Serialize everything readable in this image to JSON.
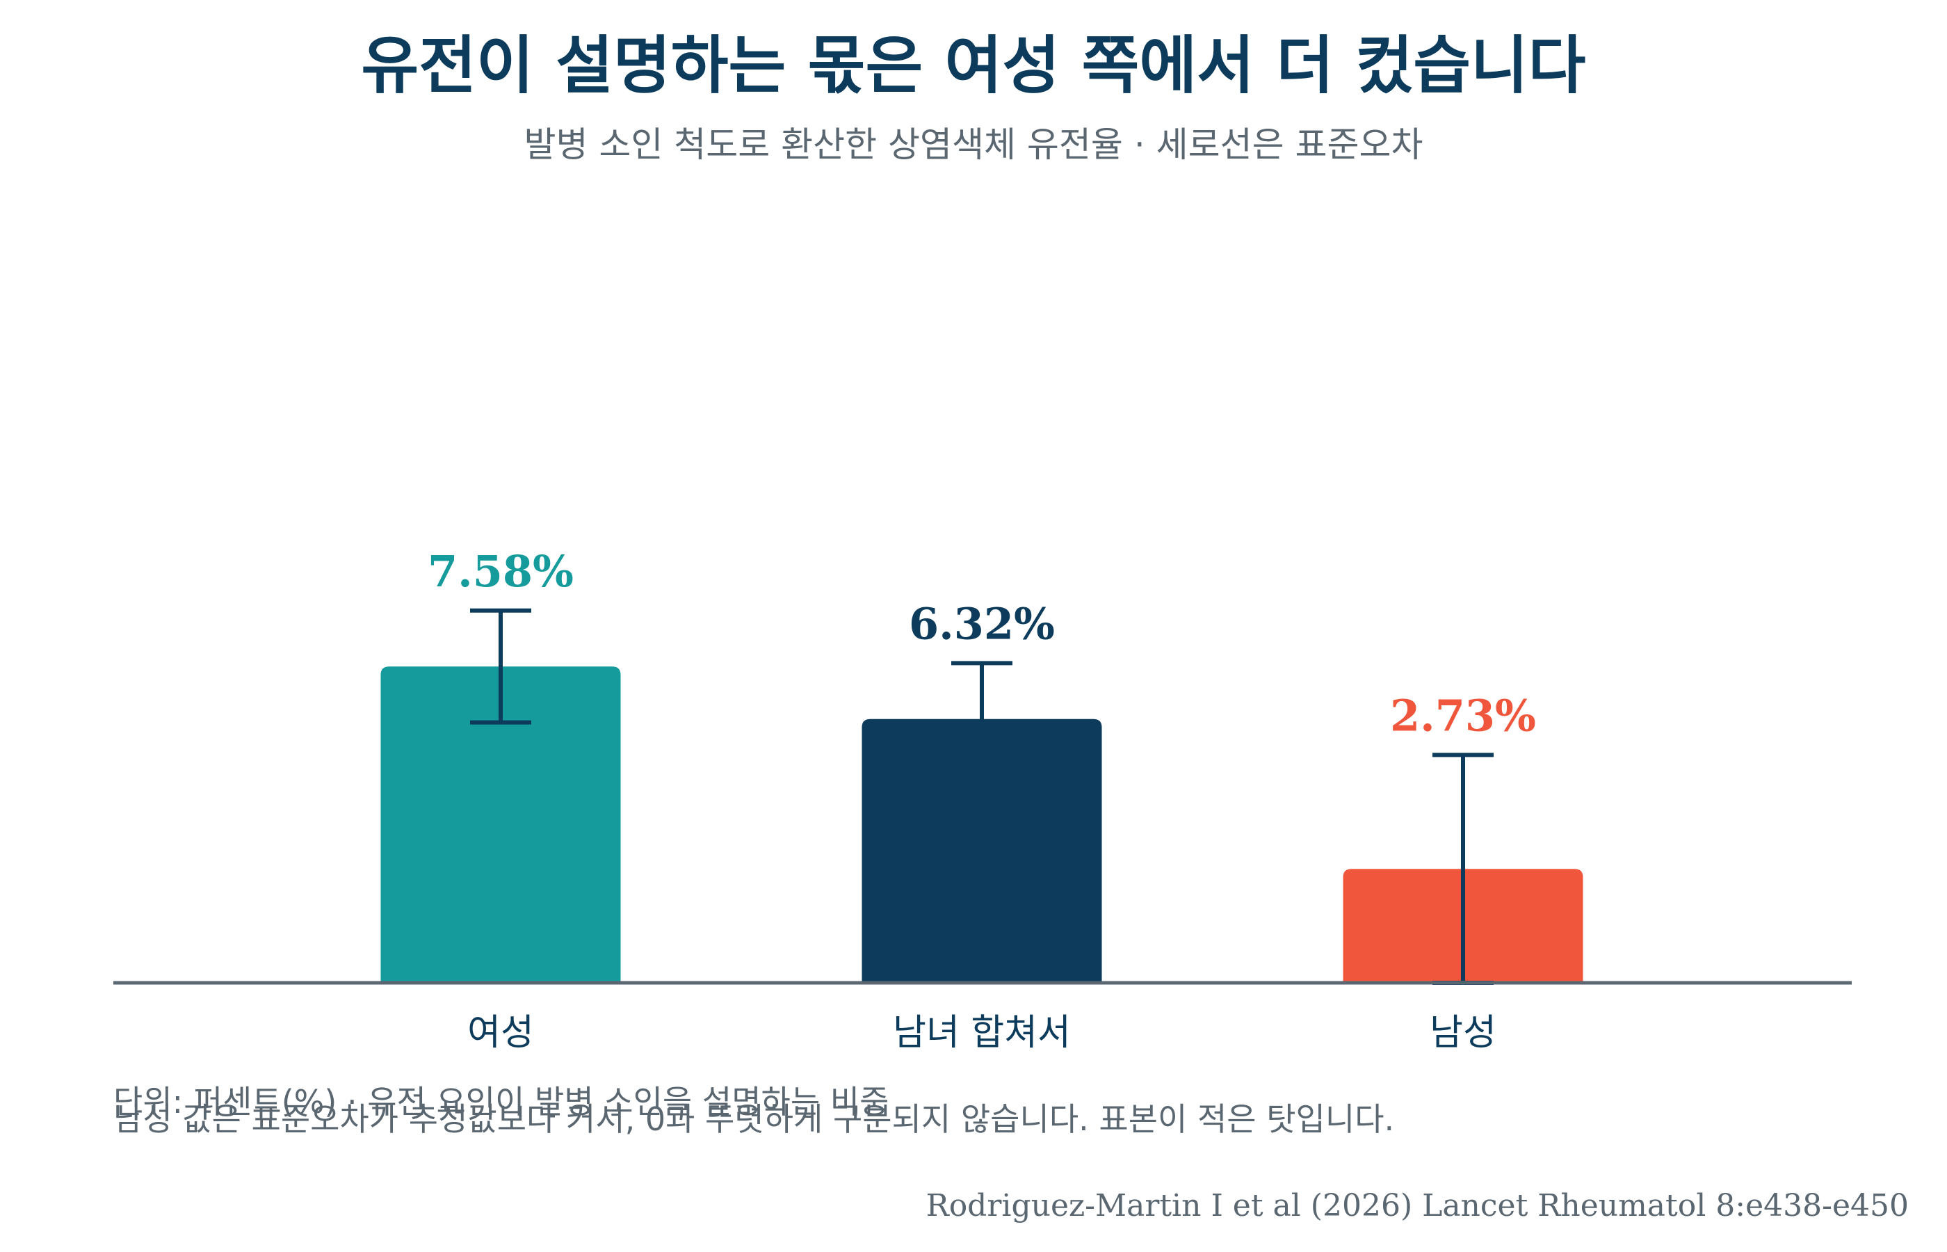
{
  "chart_data": {
    "type": "bar",
    "title": "유전이 설명하는 몫은 여성 쪽에서 더 컸습니다",
    "subtitle": "발병 소인 척도로 환산한 상염색체 유전율 · 세로선은 표준오차",
    "categories": [
      "여성",
      "남녀 합쳐서",
      "남성"
    ],
    "values": [
      7.58,
      6.32,
      2.73
    ],
    "value_labels": [
      "7.58%",
      "6.32%",
      "2.73%"
    ],
    "errors": [
      1.34,
      1.34,
      2.73
    ],
    "colors": [
      "#159b9c",
      "#0c3b5c",
      "#ef563b"
    ],
    "label_colors": [
      "#159b9c",
      "#0c3b5c",
      "#ef563b"
    ],
    "error_color": "#0c3b5c",
    "ylim": [
      0,
      14
    ],
    "grid": false,
    "xlabel": "",
    "ylabel": "",
    "notes": [
      "단위: 퍼센트(%) · 유전 요인이 발병 소인을 설명하는 비중",
      "남성 값은 표준오차가 추정값보다 커서, 0과 뚜렷하게 구분되지 않습니다. 표본이 적은 탓입니다."
    ],
    "citation": "Rodriguez-Martin I et al (2026) Lancet Rheumatol 8:e438-e450"
  }
}
